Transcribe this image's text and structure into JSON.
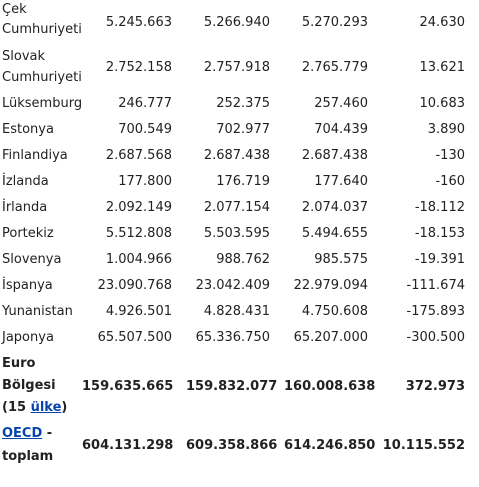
{
  "rows": [
    {
      "name": "Çek Cumhuriyeti",
      "v1": "5.245.663",
      "v2": "5.266.940",
      "v3": "5.270.293",
      "v4": "24.630"
    },
    {
      "name": "Slovak Cumhuriyeti",
      "v1": "2.752.158",
      "v2": "2.757.918",
      "v3": "2.765.779",
      "v4": "13.621"
    },
    {
      "name": "Lüksemburg",
      "v1": "246.777",
      "v2": "252.375",
      "v3": "257.460",
      "v4": "10.683"
    },
    {
      "name": "Estonya",
      "v1": "700.549",
      "v2": "702.977",
      "v3": "704.439",
      "v4": "3.890"
    },
    {
      "name": "Finlandiya",
      "v1": "2.687.568",
      "v2": "2.687.438",
      "v3": "2.687.438",
      "v4": "-130"
    },
    {
      "name": "İzlanda",
      "v1": "177.800",
      "v2": "176.719",
      "v3": "177.640",
      "v4": "-160"
    },
    {
      "name": "İrlanda",
      "v1": "2.092.149",
      "v2": "2.077.154",
      "v3": "2.074.037",
      "v4": "-18.112"
    },
    {
      "name": "Portekiz",
      "v1": "5.512.808",
      "v2": "5.503.595",
      "v3": "5.494.655",
      "v4": "-18.153"
    },
    {
      "name": "Slovenya",
      "v1": "1.004.966",
      "v2": "988.762",
      "v3": "985.575",
      "v4": "-19.391"
    },
    {
      "name": "İspanya",
      "v1": "23.090.768",
      "v2": "23.042.409",
      "v3": "22.979.094",
      "v4": "-111.674"
    },
    {
      "name": "Yunanistan",
      "v1": "4.926.501",
      "v2": "4.828.431",
      "v3": "4.750.608",
      "v4": "-175.893"
    },
    {
      "name": "Japonya",
      "v1": "65.507.500",
      "v2": "65.336.750",
      "v3": "65.207.000",
      "v4": "-300.500"
    }
  ],
  "euro": {
    "name_part1": "Euro Bölgesi (15 ",
    "link": "ülke",
    "name_part2": ")",
    "v1": "159.635.665",
    "v2": "159.832.077",
    "v3": "160.008.638",
    "v4": "372.973"
  },
  "oecd": {
    "link": "OECD",
    "name_part2": " - toplam",
    "v1": "604.131.298",
    "v2": "609.358.866",
    "v3": "614.246.850",
    "v4": "10.115.552"
  }
}
